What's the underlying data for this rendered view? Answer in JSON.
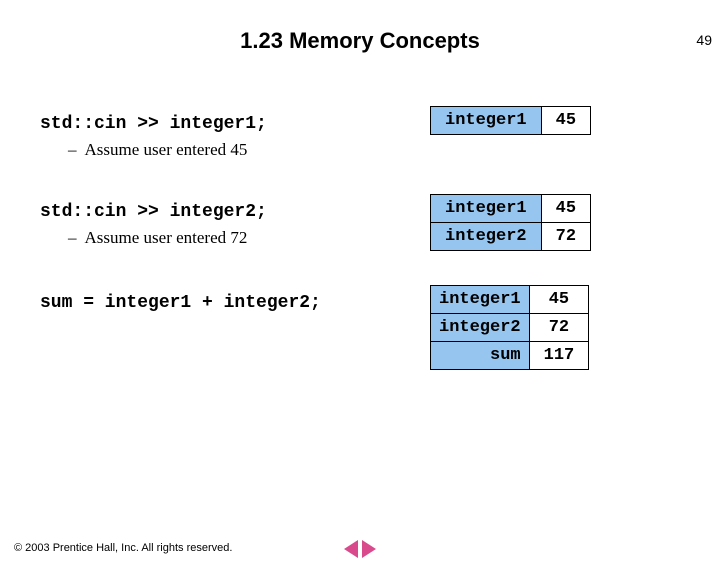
{
  "page_number": "49",
  "title": "1.23 Memory Concepts",
  "block1": {
    "code": "std::cin >> integer1;",
    "assumption": "Assume user entered 45",
    "mem": [
      {
        "label": "integer1",
        "val": "45"
      }
    ]
  },
  "block2": {
    "code": "std::cin >> integer2;",
    "assumption": "Assume user entered 72",
    "mem": [
      {
        "label": "integer1",
        "val": "45"
      },
      {
        "label": "integer2",
        "val": "72"
      }
    ]
  },
  "block3": {
    "code": "sum = integer1 + integer2;",
    "mem": [
      {
        "label": "integer1",
        "val": "45"
      },
      {
        "label": "integer2",
        "val": "72"
      },
      {
        "label": "sum",
        "val": "117"
      }
    ]
  },
  "footer": "© 2003 Prentice Hall, Inc. All rights reserved.",
  "colors": {
    "mem_label_bg": "#96c6ef",
    "mem_val_bg": "#ffffff",
    "border": "#000000",
    "nav_arrow": "#d94a8c"
  },
  "typography": {
    "title_font": "Arial",
    "title_size_pt": 17,
    "title_weight": "bold",
    "code_font": "Courier New",
    "code_size_pt": 13,
    "body_font": "Times New Roman",
    "body_size_pt": 13,
    "footer_size_pt": 8
  }
}
